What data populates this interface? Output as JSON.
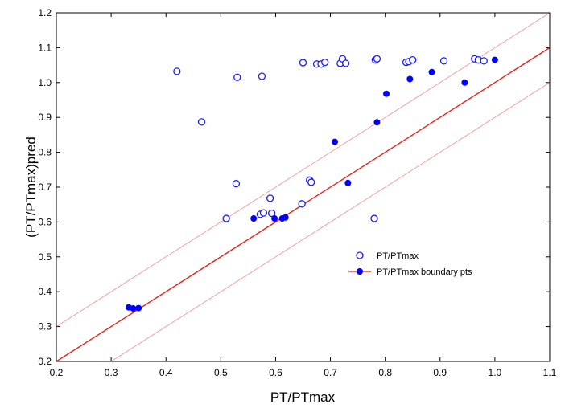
{
  "chart_data": {
    "type": "scatter",
    "title": "",
    "xlabel": "PT/PTmax",
    "ylabel": "(PT/PTmax)pred",
    "xlim": [
      0.2,
      1.1
    ],
    "ylim": [
      0.2,
      1.2
    ],
    "xticks": [
      "0.2",
      "0.3",
      "0.4",
      "0.5",
      "0.6",
      "0.7",
      "0.8",
      "0.9",
      "1.0",
      "1.1"
    ],
    "yticks": [
      "0.2",
      "0.3",
      "0.4",
      "0.5",
      "0.6",
      "0.7",
      "0.8",
      "0.9",
      "1.0",
      "1.1",
      "1.2"
    ],
    "grid": false,
    "legend_position": "center-right",
    "series": [
      {
        "name": "PT/PTmax",
        "marker": "open-circle",
        "color": "#1a1aff",
        "x": [
          0.42,
          0.465,
          0.53,
          0.575,
          0.51,
          0.528,
          0.572,
          0.578,
          0.59,
          0.593,
          0.648,
          0.662,
          0.665,
          0.65,
          0.675,
          0.683,
          0.69,
          0.718,
          0.722,
          0.728,
          0.782,
          0.785,
          0.838,
          0.843,
          0.85,
          0.78,
          0.907,
          0.963,
          0.97,
          0.98
        ],
        "y": [
          1.032,
          0.887,
          1.015,
          1.018,
          0.61,
          0.71,
          0.622,
          0.626,
          0.668,
          0.625,
          0.652,
          0.72,
          0.714,
          1.057,
          1.053,
          1.053,
          1.058,
          1.055,
          1.068,
          1.055,
          1.065,
          1.068,
          1.058,
          1.06,
          1.065,
          0.61,
          1.062,
          1.068,
          1.065,
          1.062
        ]
      },
      {
        "name": "PT/PTmax boundary pts",
        "marker": "filled-circle",
        "color": "#0000ff",
        "x": [
          0.332,
          0.34,
          0.35,
          0.56,
          0.598,
          0.612,
          0.618,
          0.708,
          0.732,
          0.785,
          0.802,
          0.845,
          0.885,
          0.945,
          1.0
        ],
        "y": [
          0.355,
          0.352,
          0.353,
          0.61,
          0.61,
          0.61,
          0.613,
          0.83,
          0.712,
          0.886,
          0.968,
          1.01,
          1.03,
          1.0,
          1.065
        ]
      }
    ],
    "lines": [
      {
        "kind": "fit",
        "color": "#e8221c",
        "slope": 1.0,
        "intercept": 0.0
      },
      {
        "kind": "upper-band",
        "color": "#f4a0a0",
        "slope": 1.0,
        "intercept": 0.1
      },
      {
        "kind": "lower-band",
        "color": "#f4a0a0",
        "slope": 1.0,
        "intercept": -0.1
      }
    ]
  }
}
